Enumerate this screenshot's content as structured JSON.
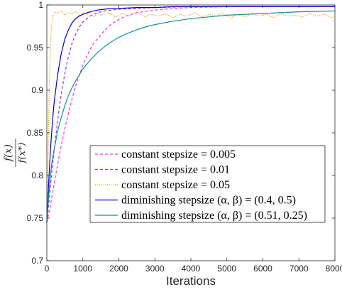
{
  "chart_data": {
    "type": "line",
    "title": "",
    "xlabel": "Iterations",
    "ylabel": {
      "numerator": "f(x)",
      "denominator": "f(x*)"
    },
    "xlim": [
      0,
      8000
    ],
    "ylim": [
      0.7,
      1.0
    ],
    "x_ticks": [
      0,
      1000,
      2000,
      3000,
      4000,
      5000,
      6000,
      7000,
      8000
    ],
    "y_ticks": [
      0.7,
      0.75,
      0.8,
      0.85,
      0.9,
      0.95,
      1
    ],
    "legend_position": "center-right",
    "grid": false,
    "series": [
      {
        "name": "constant stepsize = 0.005",
        "color": "#ff33cc",
        "style": "dashed",
        "x": [
          0,
          100,
          200,
          300,
          400,
          500,
          600,
          700,
          800,
          900,
          1000,
          1100,
          1200,
          1300,
          1400,
          1500,
          1600,
          1800,
          2000,
          2200,
          2500,
          3000,
          3500,
          4000,
          5000,
          6000,
          7000,
          8000
        ],
        "y": [
          0.745,
          0.765,
          0.79,
          0.813,
          0.835,
          0.855,
          0.873,
          0.89,
          0.905,
          0.918,
          0.929,
          0.939,
          0.948,
          0.955,
          0.96,
          0.965,
          0.97,
          0.978,
          0.983,
          0.987,
          0.991,
          0.994,
          0.996,
          0.997,
          0.998,
          0.998,
          0.998,
          0.998
        ]
      },
      {
        "name": "constant stepsize = 0.01",
        "color": "#9933cc",
        "style": "dashed",
        "x": [
          0,
          50,
          100,
          150,
          200,
          300,
          400,
          500,
          600,
          700,
          800,
          900,
          1000,
          1200,
          1400,
          1600,
          1800,
          2000,
          2500,
          3000,
          4000,
          5000,
          6000,
          7000,
          8000
        ],
        "y": [
          0.745,
          0.765,
          0.787,
          0.808,
          0.828,
          0.865,
          0.895,
          0.92,
          0.94,
          0.955,
          0.966,
          0.974,
          0.98,
          0.987,
          0.991,
          0.993,
          0.994,
          0.995,
          0.996,
          0.997,
          0.998,
          0.998,
          0.998,
          0.998,
          0.998
        ]
      },
      {
        "name": "constant stepsize = 0.05",
        "color": "#e8a317",
        "style": "dotted",
        "x": [
          0,
          25,
          50,
          75,
          100,
          125,
          150,
          175,
          200,
          250,
          300,
          400,
          500,
          600,
          700,
          800,
          900,
          1000,
          1100,
          1200,
          1300,
          1400,
          1500,
          1700,
          1900,
          2100,
          2300,
          2500,
          2700,
          2900,
          3100,
          3300,
          3500,
          3700,
          3900,
          4100,
          4300,
          4500,
          4700,
          4900,
          5100,
          5300,
          5500,
          5700,
          5900,
          6100,
          6300,
          6500,
          6700,
          6900,
          7100,
          7300,
          7500,
          7700,
          7900,
          8000
        ],
        "y": [
          0.745,
          0.8,
          0.86,
          0.91,
          0.95,
          0.972,
          0.983,
          0.988,
          0.99,
          0.992,
          0.99,
          0.993,
          0.988,
          0.991,
          0.989,
          0.993,
          0.987,
          0.991,
          0.988,
          0.992,
          0.986,
          0.99,
          0.988,
          0.991,
          0.986,
          0.99,
          0.987,
          0.992,
          0.986,
          0.989,
          0.987,
          0.99,
          0.985,
          0.989,
          0.987,
          0.991,
          0.986,
          0.989,
          0.987,
          0.99,
          0.985,
          0.989,
          0.986,
          0.99,
          0.987,
          0.989,
          0.985,
          0.99,
          0.987,
          0.988,
          0.986,
          0.99,
          0.987,
          0.989,
          0.985,
          0.988
        ]
      },
      {
        "name": "diminishing stepsize (α, β) = (0.4, 0.5)",
        "color": "#0000cc",
        "style": "solid",
        "x": [
          0,
          50,
          100,
          150,
          200,
          300,
          400,
          500,
          600,
          700,
          800,
          900,
          1000,
          1200,
          1400,
          1600,
          1800,
          2000,
          2500,
          3000,
          3500,
          4000,
          5000,
          6000,
          7000,
          8000
        ],
        "y": [
          0.745,
          0.79,
          0.83,
          0.86,
          0.885,
          0.918,
          0.943,
          0.96,
          0.971,
          0.979,
          0.984,
          0.987,
          0.989,
          0.992,
          0.994,
          0.995,
          0.996,
          0.996,
          0.997,
          0.997,
          0.998,
          0.998,
          0.998,
          0.998,
          0.998,
          0.998
        ]
      },
      {
        "name": "diminishing stepsize (α, β) = (0.51, 0.25)",
        "color": "#1a8f8f",
        "style": "solid",
        "x": [
          0,
          50,
          100,
          150,
          200,
          300,
          400,
          500,
          600,
          700,
          800,
          900,
          1000,
          1200,
          1400,
          1600,
          1800,
          2000,
          2200,
          2500,
          2800,
          3000,
          3500,
          4000,
          4500,
          5000,
          6000,
          7000,
          8000
        ],
        "y": [
          0.745,
          0.775,
          0.8,
          0.818,
          0.83,
          0.852,
          0.868,
          0.882,
          0.894,
          0.903,
          0.911,
          0.918,
          0.925,
          0.935,
          0.944,
          0.951,
          0.957,
          0.962,
          0.966,
          0.971,
          0.975,
          0.977,
          0.981,
          0.984,
          0.986,
          0.988,
          0.99,
          0.992,
          0.993
        ]
      }
    ]
  }
}
